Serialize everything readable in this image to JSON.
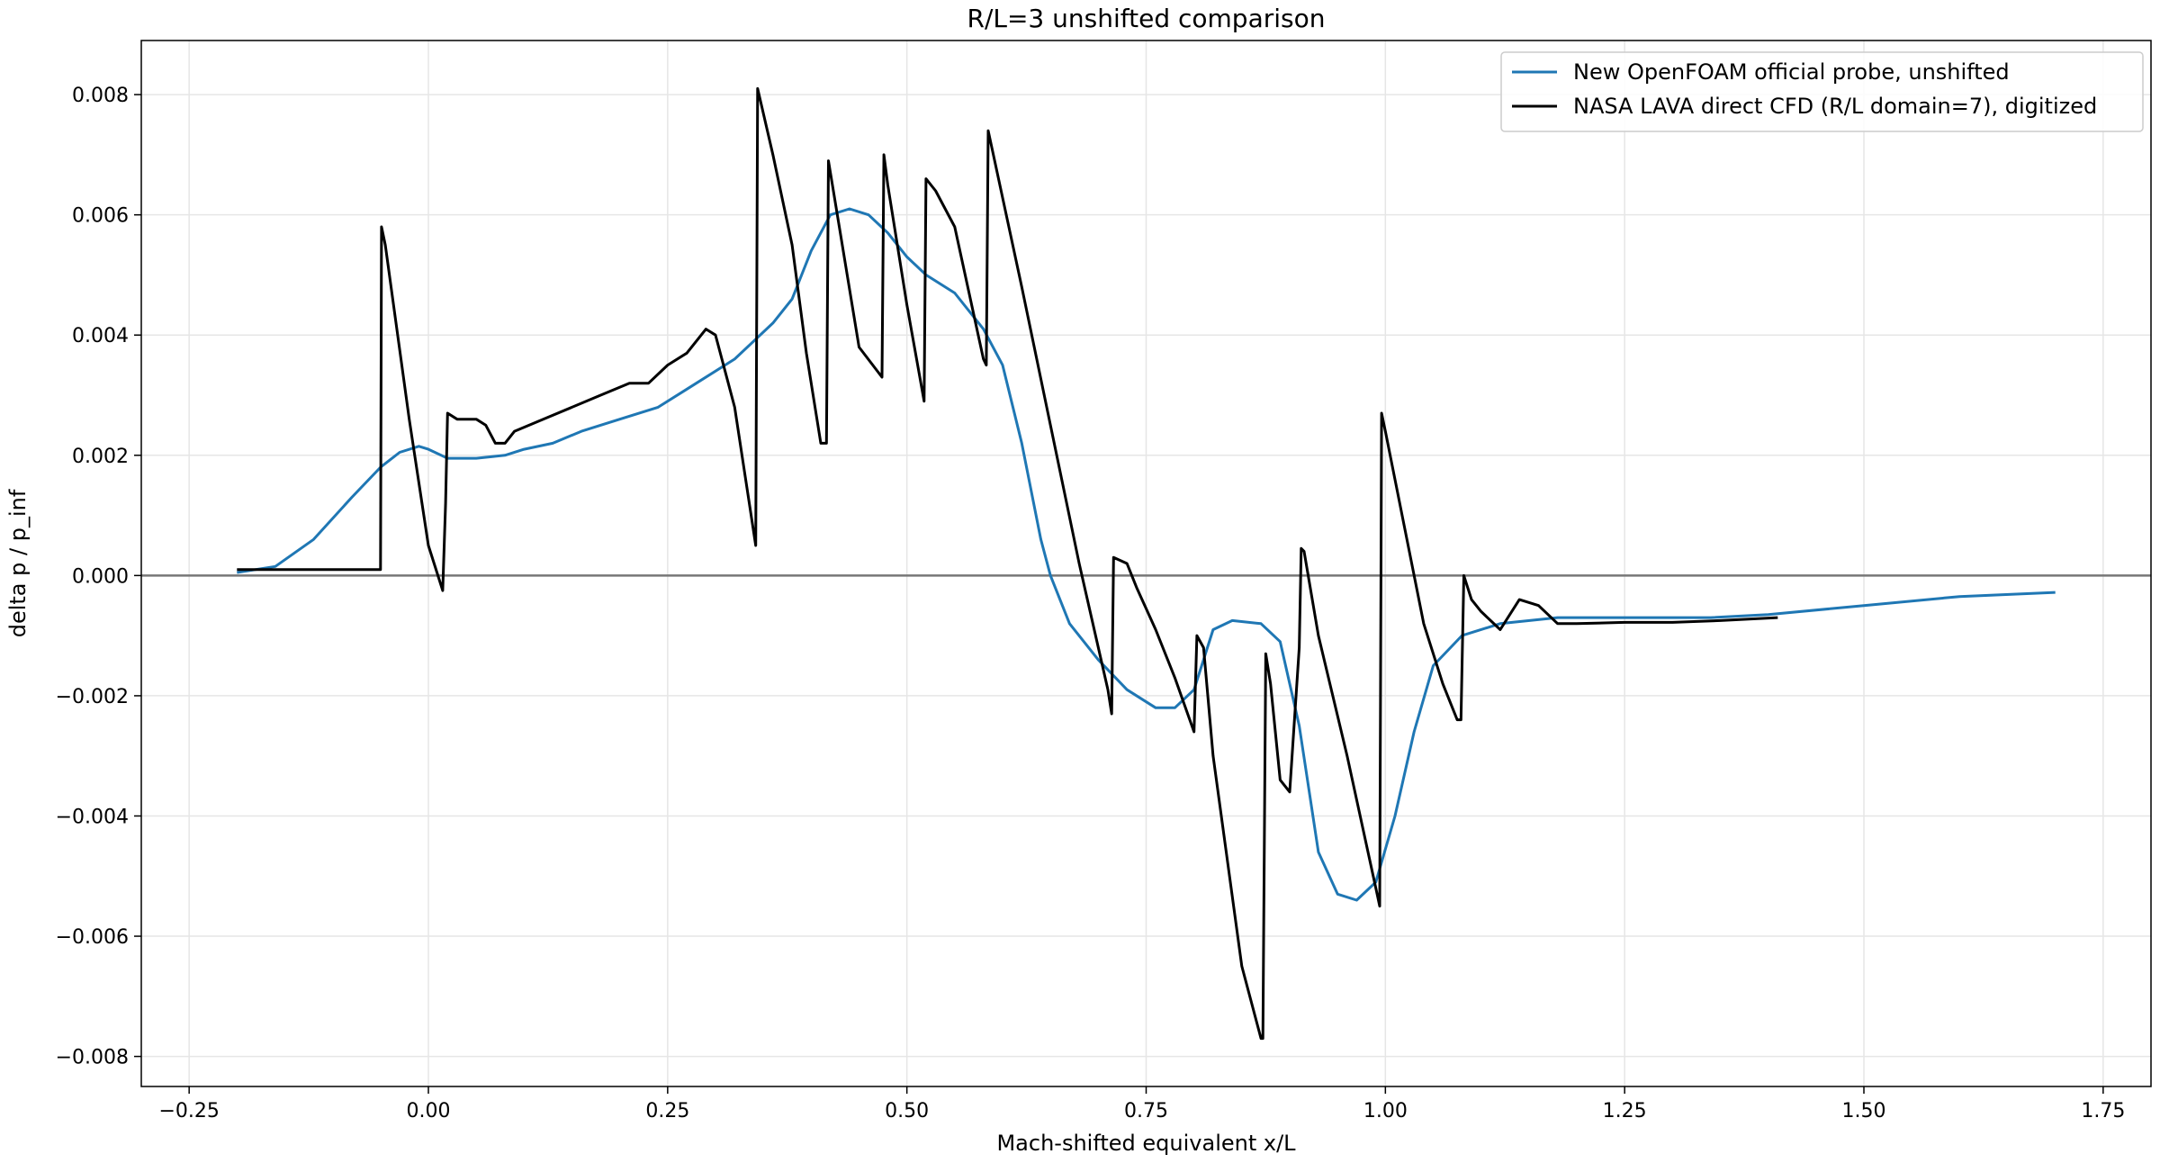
{
  "chart_data": {
    "type": "line",
    "title": "R/L=3 unshifted comparison",
    "xlabel": "Mach-shifted equivalent x/L",
    "ylabel": "delta p / p_inf",
    "xlim": [
      -0.3,
      1.8
    ],
    "ylim": [
      -0.0085,
      0.0089
    ],
    "xticks": [
      -0.25,
      0.0,
      0.25,
      0.5,
      0.75,
      1.0,
      1.25,
      1.5,
      1.75
    ],
    "xtick_labels": [
      "−0.25",
      "0.00",
      "0.25",
      "0.50",
      "0.75",
      "1.00",
      "1.25",
      "1.50",
      "1.75"
    ],
    "yticks": [
      -0.008,
      -0.006,
      -0.004,
      -0.002,
      0.0,
      0.002,
      0.004,
      0.006,
      0.008
    ],
    "ytick_labels": [
      "−0.008",
      "−0.006",
      "−0.004",
      "−0.002",
      "0.000",
      "0.002",
      "0.004",
      "0.006",
      "0.008"
    ],
    "grid": true,
    "legend_position": "top-right",
    "zero_line": true,
    "series": [
      {
        "name": "New OpenFOAM official probe, unshifted",
        "color": "#1f77b4",
        "x": [
          -0.2,
          -0.16,
          -0.12,
          -0.08,
          -0.05,
          -0.03,
          -0.01,
          0.0,
          0.02,
          0.05,
          0.08,
          0.1,
          0.13,
          0.16,
          0.2,
          0.24,
          0.28,
          0.32,
          0.36,
          0.38,
          0.4,
          0.42,
          0.44,
          0.46,
          0.48,
          0.5,
          0.52,
          0.55,
          0.58,
          0.6,
          0.62,
          0.64,
          0.65,
          0.67,
          0.7,
          0.73,
          0.76,
          0.78,
          0.8,
          0.82,
          0.84,
          0.87,
          0.89,
          0.91,
          0.93,
          0.95,
          0.97,
          0.99,
          1.01,
          1.03,
          1.05,
          1.08,
          1.12,
          1.18,
          1.25,
          1.34,
          1.4,
          1.5,
          1.6,
          1.7
        ],
        "y": [
          5e-05,
          0.00015,
          0.0006,
          0.0013,
          0.0018,
          0.00205,
          0.00215,
          0.0021,
          0.00195,
          0.00195,
          0.002,
          0.0021,
          0.0022,
          0.0024,
          0.0026,
          0.0028,
          0.0032,
          0.0036,
          0.0042,
          0.0046,
          0.0054,
          0.006,
          0.0061,
          0.006,
          0.0057,
          0.0053,
          0.005,
          0.0047,
          0.0041,
          0.0035,
          0.0022,
          0.0006,
          0.0,
          -0.0008,
          -0.0014,
          -0.0019,
          -0.0022,
          -0.0022,
          -0.0019,
          -0.0009,
          -0.00075,
          -0.0008,
          -0.0011,
          -0.0025,
          -0.0046,
          -0.0053,
          -0.0054,
          -0.0051,
          -0.004,
          -0.0026,
          -0.0015,
          -0.001,
          -0.0008,
          -0.0007,
          -0.0007,
          -0.0007,
          -0.00065,
          -0.0005,
          -0.00035,
          -0.00028
        ]
      },
      {
        "name": "NASA LAVA direct CFD (R/L domain=7), digitized",
        "color": "#000000",
        "x": [
          -0.2,
          -0.05,
          -0.049,
          -0.045,
          -0.02,
          0.0,
          0.015,
          0.018,
          0.02,
          0.03,
          0.05,
          0.06,
          0.07,
          0.08,
          0.09,
          0.12,
          0.15,
          0.18,
          0.21,
          0.23,
          0.25,
          0.27,
          0.29,
          0.3,
          0.32,
          0.342,
          0.344,
          0.36,
          0.38,
          0.395,
          0.41,
          0.416,
          0.418,
          0.45,
          0.474,
          0.476,
          0.48,
          0.5,
          0.518,
          0.52,
          0.53,
          0.55,
          0.58,
          0.583,
          0.585,
          0.62,
          0.65,
          0.68,
          0.71,
          0.714,
          0.716,
          0.73,
          0.74,
          0.76,
          0.78,
          0.8,
          0.803,
          0.81,
          0.82,
          0.85,
          0.87,
          0.872,
          0.875,
          0.88,
          0.89,
          0.9,
          0.91,
          0.912,
          0.915,
          0.93,
          0.96,
          0.99,
          0.994,
          0.996,
          1.0,
          1.02,
          1.04,
          1.06,
          1.075,
          1.079,
          1.082,
          1.09,
          1.1,
          1.12,
          1.14,
          1.16,
          1.18,
          1.2,
          1.25,
          1.3,
          1.35,
          1.41
        ],
        "y": [
          0.0001,
          0.0001,
          0.0058,
          0.0055,
          0.0026,
          0.0005,
          -0.00025,
          0.0012,
          0.0027,
          0.0026,
          0.0026,
          0.0025,
          0.0022,
          0.0022,
          0.0024,
          0.0026,
          0.0028,
          0.003,
          0.0032,
          0.0032,
          0.0035,
          0.0037,
          0.0041,
          0.004,
          0.0028,
          0.0005,
          0.0081,
          0.007,
          0.0055,
          0.0037,
          0.0022,
          0.0022,
          0.0069,
          0.0038,
          0.0033,
          0.007,
          0.0065,
          0.0045,
          0.0029,
          0.0066,
          0.0064,
          0.0058,
          0.0036,
          0.0035,
          0.0074,
          0.0048,
          0.0025,
          0.0002,
          -0.0019,
          -0.0023,
          0.0003,
          0.0002,
          -0.0002,
          -0.0009,
          -0.0017,
          -0.0026,
          -0.001,
          -0.0012,
          -0.003,
          -0.0065,
          -0.0077,
          -0.0077,
          -0.0013,
          -0.0018,
          -0.0034,
          -0.0036,
          -0.0012,
          0.00045,
          0.0004,
          -0.001,
          -0.003,
          -0.0052,
          -0.0055,
          0.0027,
          0.0024,
          0.0008,
          -0.0008,
          -0.0018,
          -0.0024,
          -0.0024,
          0.0,
          -0.0004,
          -0.0006,
          -0.0009,
          -0.0004,
          -0.0005,
          -0.0008,
          -0.0008,
          -0.00078,
          -0.00078,
          -0.00075,
          -0.0007
        ]
      }
    ]
  }
}
